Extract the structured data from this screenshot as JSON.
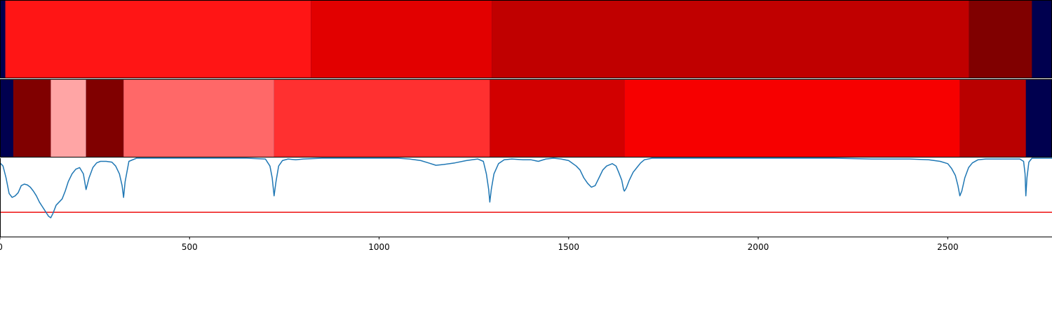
{
  "chart_data": [
    {
      "type": "heatmap",
      "name": "segment-strip-top",
      "xlim": [
        0,
        2775
      ],
      "background_color": "#00004f",
      "segments": [
        {
          "start": 14,
          "end": 820,
          "color": "#ff1515"
        },
        {
          "start": 820,
          "end": 1297,
          "color": "#e20000"
        },
        {
          "start": 1297,
          "end": 2556,
          "color": "#c00000"
        },
        {
          "start": 2556,
          "end": 2722,
          "color": "#800000"
        }
      ]
    },
    {
      "type": "heatmap",
      "name": "segment-strip-bottom",
      "xlim": [
        0,
        2775
      ],
      "background_color": "#00004f",
      "segments": [
        {
          "start": 35,
          "end": 134,
          "color": "#800000"
        },
        {
          "start": 134,
          "end": 227,
          "color": "#ffa5a5"
        },
        {
          "start": 227,
          "end": 326,
          "color": "#800000"
        },
        {
          "start": 326,
          "end": 723,
          "color": "#ff6868"
        },
        {
          "start": 723,
          "end": 1292,
          "color": "#ff3030"
        },
        {
          "start": 1292,
          "end": 1647,
          "color": "#d20000"
        },
        {
          "start": 1647,
          "end": 2532,
          "color": "#f70000"
        },
        {
          "start": 2532,
          "end": 2706,
          "color": "#b90000"
        }
      ]
    },
    {
      "type": "line",
      "name": "signal-plot",
      "xlim": [
        0,
        2775
      ],
      "ylim": [
        0,
        1
      ],
      "x_ticks": [
        0,
        500,
        1000,
        1500,
        2000,
        2500
      ],
      "grid": false,
      "threshold": {
        "y": 0.31,
        "color": "#ee1111"
      },
      "series": [
        {
          "color": "#1f77b4",
          "x": [
            0,
            8,
            16,
            24,
            32,
            40,
            48,
            56,
            64,
            72,
            80,
            88,
            96,
            104,
            112,
            120,
            128,
            134,
            140,
            148,
            156,
            164,
            172,
            180,
            190,
            200,
            210,
            220,
            227,
            235,
            245,
            255,
            265,
            280,
            295,
            305,
            315,
            322,
            326,
            330,
            340,
            360,
            400,
            450,
            500,
            550,
            600,
            650,
            700,
            712,
            718,
            723,
            728,
            735,
            745,
            760,
            780,
            800,
            850,
            900,
            950,
            1000,
            1050,
            1080,
            1110,
            1130,
            1150,
            1170,
            1200,
            1230,
            1260,
            1275,
            1283,
            1289,
            1292,
            1296,
            1303,
            1315,
            1330,
            1350,
            1380,
            1400,
            1420,
            1440,
            1460,
            1480,
            1500,
            1520,
            1530,
            1540,
            1550,
            1560,
            1570,
            1580,
            1590,
            1600,
            1615,
            1625,
            1632,
            1640,
            1645,
            1647,
            1652,
            1660,
            1670,
            1680,
            1690,
            1700,
            1720,
            1760,
            1800,
            1900,
            2000,
            2100,
            2200,
            2300,
            2400,
            2450,
            2480,
            2500,
            2510,
            2520,
            2527,
            2532,
            2537,
            2545,
            2555,
            2565,
            2580,
            2600,
            2650,
            2690,
            2700,
            2704,
            2706,
            2709,
            2714,
            2722,
            2730,
            2775
          ],
          "y": [
            0.94,
            0.9,
            0.75,
            0.55,
            0.5,
            0.52,
            0.56,
            0.65,
            0.67,
            0.66,
            0.63,
            0.58,
            0.52,
            0.44,
            0.38,
            0.32,
            0.26,
            0.24,
            0.3,
            0.4,
            0.44,
            0.48,
            0.58,
            0.7,
            0.8,
            0.86,
            0.88,
            0.8,
            0.6,
            0.75,
            0.88,
            0.94,
            0.96,
            0.96,
            0.95,
            0.9,
            0.8,
            0.65,
            0.5,
            0.7,
            0.96,
            1.0,
            1.0,
            1.0,
            1.0,
            1.0,
            1.0,
            1.0,
            0.99,
            0.9,
            0.75,
            0.52,
            0.7,
            0.9,
            0.97,
            0.99,
            0.98,
            0.99,
            1.0,
            1.0,
            1.0,
            1.0,
            1.0,
            0.99,
            0.97,
            0.94,
            0.91,
            0.92,
            0.94,
            0.97,
            0.99,
            0.96,
            0.8,
            0.6,
            0.44,
            0.6,
            0.8,
            0.93,
            0.98,
            0.99,
            0.98,
            0.98,
            0.96,
            0.99,
            1.0,
            0.99,
            0.97,
            0.9,
            0.85,
            0.75,
            0.68,
            0.63,
            0.65,
            0.75,
            0.85,
            0.9,
            0.93,
            0.9,
            0.82,
            0.72,
            0.6,
            0.58,
            0.62,
            0.72,
            0.82,
            0.88,
            0.94,
            0.98,
            1.0,
            1.0,
            1.0,
            1.0,
            1.0,
            1.0,
            1.0,
            0.99,
            0.99,
            0.98,
            0.96,
            0.93,
            0.87,
            0.78,
            0.65,
            0.52,
            0.58,
            0.75,
            0.88,
            0.94,
            0.98,
            0.99,
            0.99,
            0.99,
            0.96,
            0.8,
            0.52,
            0.75,
            0.95,
            1.0,
            1.0,
            1.0
          ]
        }
      ]
    }
  ]
}
